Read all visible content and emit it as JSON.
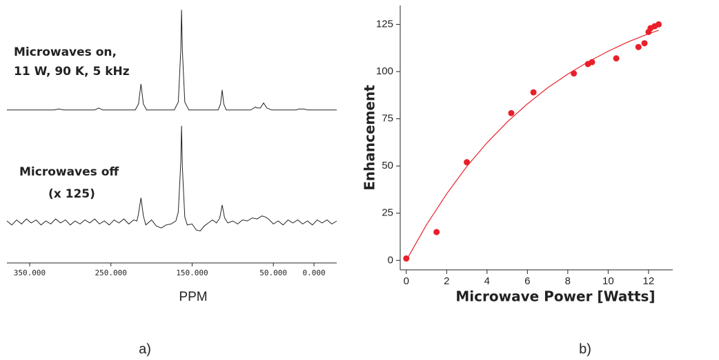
{
  "chart_data": [
    {
      "type": "line",
      "annotation": [
        "Microwaves on,",
        "11 W, 90 K, 5 kHz"
      ],
      "color": "#222222",
      "xlim": [
        378,
        -28
      ],
      "ylim": [
        -7,
        103
      ],
      "x": [
        378,
        320,
        314,
        308,
        270,
        265,
        260,
        220,
        216,
        213,
        210,
        206,
        172,
        167,
        164,
        163,
        162,
        159,
        154,
        118,
        115,
        113,
        111,
        108,
        78,
        72,
        70,
        66,
        62,
        58,
        52,
        22,
        19,
        12,
        8,
        -28
      ],
      "values": [
        0,
        0,
        1,
        0,
        0,
        2,
        0,
        0,
        6,
        26,
        6,
        0,
        0,
        8,
        60,
        100,
        60,
        8,
        0,
        0,
        6,
        20,
        6,
        0,
        0,
        3,
        2,
        2,
        7,
        2,
        0,
        0,
        1,
        1,
        0,
        0
      ]
    },
    {
      "type": "line",
      "annotation": [
        "Microwaves off",
        "(x 125)"
      ],
      "color": "#222222",
      "xlim": [
        378,
        -28
      ],
      "ylim": [
        -10,
        100
      ],
      "xlabel": "PPM",
      "panel_label": "a)",
      "xticks": [
        {
          "value": 350,
          "label": "350.000"
        },
        {
          "value": 250,
          "label": "250.000"
        },
        {
          "value": 150,
          "label": "150.000"
        },
        {
          "value": 50,
          "label": "50.000"
        },
        {
          "value": 0,
          "label": "0.000"
        }
      ],
      "x": [
        378,
        372,
        366,
        360,
        354,
        348,
        342,
        336,
        330,
        324,
        318,
        312,
        306,
        300,
        294,
        288,
        282,
        276,
        270,
        264,
        258,
        252,
        246,
        240,
        234,
        228,
        222,
        218,
        216,
        213,
        210,
        207,
        200,
        194,
        188,
        182,
        176,
        170,
        167,
        164,
        163,
        162,
        159,
        156,
        150,
        145,
        140,
        135,
        130,
        125,
        120,
        116,
        113,
        110,
        106,
        100,
        94,
        88,
        82,
        76,
        70,
        64,
        60,
        56,
        50,
        44,
        38,
        32,
        26,
        20,
        14,
        8,
        2,
        -4,
        -10,
        -16,
        -22,
        -28
      ],
      "values": [
        1,
        -3,
        2,
        -2,
        3,
        -1,
        2,
        -3,
        1,
        -2,
        3,
        -1,
        2,
        -3,
        1,
        -2,
        2,
        -1,
        3,
        -2,
        1,
        -3,
        2,
        -1,
        3,
        -2,
        2,
        1,
        8,
        24,
        6,
        -3,
        2,
        -4,
        -6,
        -3,
        -2,
        1,
        10,
        60,
        96,
        55,
        5,
        -3,
        -2,
        -8,
        -9,
        -4,
        -1,
        2,
        -1,
        4,
        17,
        4,
        -1,
        1,
        -2,
        2,
        1,
        4,
        3,
        6,
        5,
        3,
        -2,
        1,
        -3,
        2,
        -1,
        2,
        -2,
        1,
        -3,
        2,
        -1,
        2,
        -2,
        1
      ]
    },
    {
      "type": "scatter",
      "color": "#e8202a",
      "xlabel": "Microwave Power [Watts]",
      "ylabel": "Enhancement",
      "panel_label": "b)",
      "xlim": [
        -0.3,
        13.2
      ],
      "ylim": [
        -5,
        135
      ],
      "xticks": [
        0,
        2,
        4,
        6,
        8,
        10,
        12
      ],
      "yticks": [
        0,
        25,
        50,
        75,
        100,
        125
      ],
      "x": [
        0,
        1.5,
        3,
        5.2,
        6.3,
        8.3,
        9,
        9.2,
        10.4,
        11.5,
        11.8,
        12,
        12.1,
        12.3,
        12.5
      ],
      "values": [
        1,
        15,
        52,
        78,
        89,
        99,
        104,
        105,
        107,
        113,
        115,
        121,
        123,
        124,
        125
      ],
      "fit": {
        "x": [
          0,
          1,
          2,
          3,
          4,
          5,
          6,
          7,
          8,
          9,
          10,
          11,
          12,
          12.5
        ],
        "values": [
          0,
          18.8,
          35.2,
          49.8,
          62.3,
          73.3,
          82.9,
          91.4,
          98.7,
          105.1,
          110.8,
          115.8,
          120,
          121.9
        ]
      }
    }
  ]
}
